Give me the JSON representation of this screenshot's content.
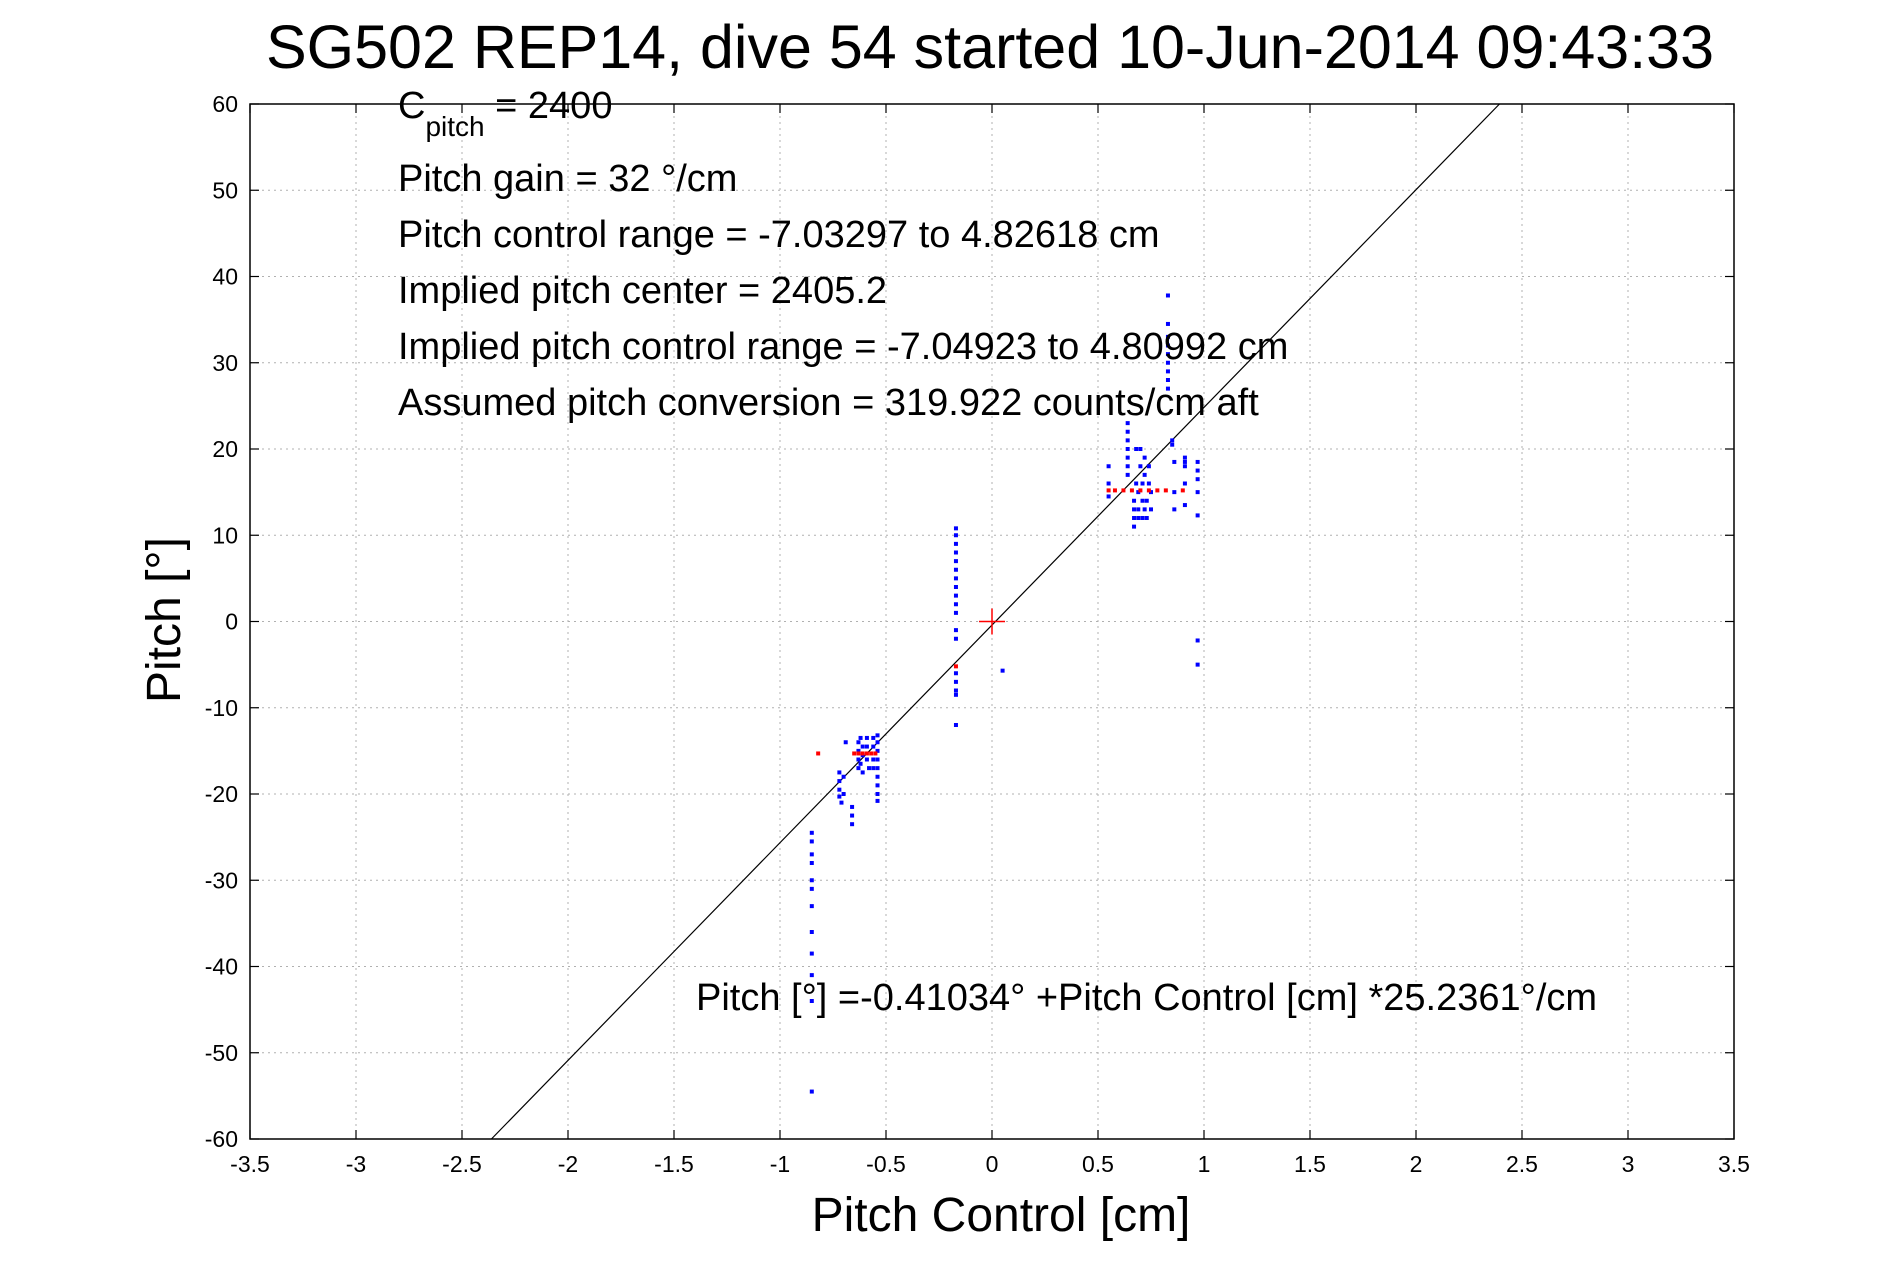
{
  "chart_data": {
    "type": "scatter",
    "title": "SG502 REP14, dive 54 started 10-Jun-2014 09:43:33",
    "xlabel": "Pitch Control [cm]",
    "ylabel": "Pitch [°]",
    "xlim": [
      -3.5,
      3.5
    ],
    "ylim": [
      -60,
      60
    ],
    "grid": true,
    "x_ticks": [
      "-3.5",
      "-3",
      "-2.5",
      "-2",
      "-1.5",
      "-1",
      "-0.5",
      "0",
      "0.5",
      "1",
      "1.5",
      "2",
      "2.5",
      "3",
      "3.5"
    ],
    "y_ticks": [
      "-60",
      "-50",
      "-40",
      "-30",
      "-20",
      "-10",
      "0",
      "10",
      "20",
      "30",
      "40",
      "50",
      "60"
    ],
    "annotations": {
      "c_pitch_main": "C",
      "c_pitch_sub": "pitch",
      "c_pitch_value": " = 2400",
      "pitch_gain": "Pitch gain = 32 °/cm",
      "control_range": "Pitch control range = -7.03297 to 4.82618 cm",
      "implied_center": "Implied pitch center = 2405.2",
      "implied_range": "Implied pitch control range = -7.04923 to 4.80992 cm",
      "assumed_conversion": "Assumed pitch conversion = 319.922 counts/cm aft",
      "fit_equation": "Pitch [°] =-0.41034° +Pitch Control [cm] *25.2361°/cm"
    },
    "fit_line": {
      "intercept": -0.41034,
      "slope": 25.2361,
      "color": "#000000"
    },
    "center_marker": {
      "x": 0,
      "y": 0,
      "color": "#ff0000"
    },
    "series": [
      {
        "color": "#0000ff",
        "points": [
          [
            -0.85,
            -54.5
          ],
          [
            -0.85,
            -44
          ],
          [
            -0.85,
            -41
          ],
          [
            -0.85,
            -38.5
          ],
          [
            -0.85,
            -36
          ],
          [
            -0.85,
            -33
          ],
          [
            -0.85,
            -31
          ],
          [
            -0.85,
            -30
          ],
          [
            -0.85,
            -28
          ],
          [
            -0.85,
            -27
          ],
          [
            -0.85,
            -25.5
          ],
          [
            -0.85,
            -24.5
          ],
          [
            -0.72,
            -17.5
          ],
          [
            -0.72,
            -18.5
          ],
          [
            -0.72,
            -19.5
          ],
          [
            -0.72,
            -20.3
          ],
          [
            -0.71,
            -21
          ],
          [
            -0.7,
            -18
          ],
          [
            -0.7,
            -20
          ],
          [
            -0.69,
            -14
          ],
          [
            -0.66,
            -21.5
          ],
          [
            -0.66,
            -22.5
          ],
          [
            -0.66,
            -23.5
          ],
          [
            -0.63,
            -14
          ],
          [
            -0.63,
            -15
          ],
          [
            -0.63,
            -16
          ],
          [
            -0.63,
            -17
          ],
          [
            -0.62,
            -13.5
          ],
          [
            -0.62,
            -16.5
          ],
          [
            -0.61,
            -14.5
          ],
          [
            -0.61,
            -15.5
          ],
          [
            -0.61,
            -17.5
          ],
          [
            -0.59,
            -13.5
          ],
          [
            -0.59,
            -14.5
          ],
          [
            -0.59,
            -16
          ],
          [
            -0.58,
            -17
          ],
          [
            -0.56,
            -13.5
          ],
          [
            -0.56,
            -14.5
          ],
          [
            -0.56,
            -16
          ],
          [
            -0.56,
            -17
          ],
          [
            -0.54,
            -13.2
          ],
          [
            -0.54,
            -14
          ],
          [
            -0.54,
            -15
          ],
          [
            -0.54,
            -16
          ],
          [
            -0.54,
            -17
          ],
          [
            -0.54,
            -18
          ],
          [
            -0.54,
            -19
          ],
          [
            -0.54,
            -20
          ],
          [
            -0.54,
            -20.8
          ],
          [
            -0.17,
            10.8
          ],
          [
            -0.17,
            10
          ],
          [
            -0.17,
            9
          ],
          [
            -0.17,
            8
          ],
          [
            -0.17,
            7
          ],
          [
            -0.17,
            6
          ],
          [
            -0.17,
            5
          ],
          [
            -0.17,
            4
          ],
          [
            -0.17,
            3
          ],
          [
            -0.17,
            2
          ],
          [
            -0.17,
            1
          ],
          [
            -0.17,
            -1
          ],
          [
            -0.17,
            -2
          ],
          [
            -0.17,
            -6
          ],
          [
            -0.17,
            -7
          ],
          [
            -0.17,
            -8
          ],
          [
            -0.17,
            -8.5
          ],
          [
            -0.17,
            -12
          ],
          [
            0.05,
            -5.7
          ],
          [
            0.55,
            18
          ],
          [
            0.55,
            16
          ],
          [
            0.55,
            14.5
          ],
          [
            0.64,
            23
          ],
          [
            0.64,
            22
          ],
          [
            0.64,
            21
          ],
          [
            0.64,
            20
          ],
          [
            0.64,
            19
          ],
          [
            0.64,
            18
          ],
          [
            0.64,
            17
          ],
          [
            0.67,
            11
          ],
          [
            0.67,
            12
          ],
          [
            0.67,
            13
          ],
          [
            0.67,
            14
          ],
          [
            0.68,
            16
          ],
          [
            0.68,
            20
          ],
          [
            0.69,
            12
          ],
          [
            0.69,
            13
          ],
          [
            0.69,
            15
          ],
          [
            0.7,
            18
          ],
          [
            0.7,
            20
          ],
          [
            0.71,
            12
          ],
          [
            0.71,
            14
          ],
          [
            0.71,
            16
          ],
          [
            0.72,
            13
          ],
          [
            0.72,
            17
          ],
          [
            0.72,
            19
          ],
          [
            0.73,
            12
          ],
          [
            0.73,
            14
          ],
          [
            0.74,
            16
          ],
          [
            0.74,
            18
          ],
          [
            0.75,
            13
          ],
          [
            0.75,
            15
          ],
          [
            0.83,
            37.8
          ],
          [
            0.83,
            34.5
          ],
          [
            0.83,
            33
          ],
          [
            0.83,
            32
          ],
          [
            0.83,
            31
          ],
          [
            0.83,
            30
          ],
          [
            0.83,
            29
          ],
          [
            0.83,
            28
          ],
          [
            0.83,
            27
          ],
          [
            0.85,
            21
          ],
          [
            0.85,
            20.5
          ],
          [
            0.86,
            18.5
          ],
          [
            0.86,
            15
          ],
          [
            0.86,
            13
          ],
          [
            0.91,
            19
          ],
          [
            0.91,
            18.5
          ],
          [
            0.91,
            18
          ],
          [
            0.91,
            16
          ],
          [
            0.91,
            13.5
          ],
          [
            0.97,
            18.5
          ],
          [
            0.97,
            17.5
          ],
          [
            0.97,
            16.5
          ],
          [
            0.97,
            15
          ],
          [
            0.97,
            12.3
          ],
          [
            0.97,
            -2.2
          ],
          [
            0.97,
            -5
          ]
        ]
      },
      {
        "color": "#ff0000",
        "points": [
          [
            -0.82,
            -15.3
          ],
          [
            -0.65,
            -15.3
          ],
          [
            -0.63,
            -15.3
          ],
          [
            -0.61,
            -15.3
          ],
          [
            -0.59,
            -15.3
          ],
          [
            -0.57,
            -15.3
          ],
          [
            -0.55,
            -15.3
          ],
          [
            -0.17,
            -5.2
          ],
          [
            0.55,
            15.2
          ],
          [
            0.58,
            15.2
          ],
          [
            0.62,
            15.2
          ],
          [
            0.66,
            15.2
          ],
          [
            0.7,
            15.2
          ],
          [
            0.74,
            15.2
          ],
          [
            0.78,
            15.2
          ],
          [
            0.82,
            15.2
          ],
          [
            0.9,
            15.2
          ]
        ]
      }
    ]
  }
}
